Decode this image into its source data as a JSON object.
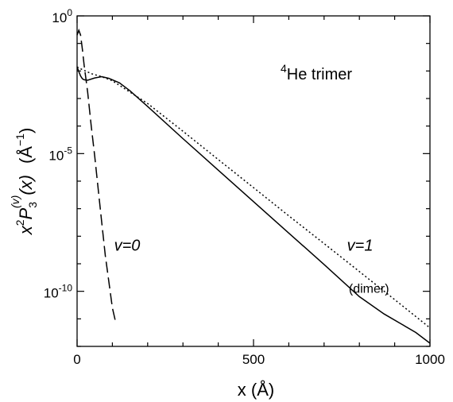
{
  "chart_data": {
    "type": "line",
    "title": "",
    "title_parts": {
      "sup": "4",
      "text": "He trimer"
    },
    "xlabel": "x (Å)",
    "ylabel_parts": {
      "x": "x",
      "sup2": "2",
      "P": "P",
      "sub3": "3",
      "supv": "(v)",
      "arg": "(x)",
      "unit": "(Å",
      "unitsup": "−1",
      "close": ")"
    },
    "xlim": [
      0,
      1000
    ],
    "ylim": [
      1e-12,
      1
    ],
    "yscale": "log",
    "grid": false,
    "x_ticks": [
      0,
      500,
      1000
    ],
    "x_tick_labels": [
      "0",
      "500",
      "1000"
    ],
    "y_ticks": [
      1,
      1e-05,
      1e-10
    ],
    "y_tick_labels": [
      {
        "base": "10",
        "exp": "0"
      },
      {
        "base": "10",
        "exp": "-5"
      },
      {
        "base": "10",
        "exp": "-10"
      }
    ],
    "series": [
      {
        "name": "v=1",
        "style": "solid",
        "x": [
          0,
          5,
          10,
          15,
          20,
          30,
          50,
          70,
          90,
          120,
          150,
          200,
          300,
          400,
          500,
          600,
          700,
          800,
          870,
          920,
          960,
          1000
        ],
        "y": [
          0.014,
          0.0095,
          0.0066,
          0.0052,
          0.0048,
          0.0046,
          0.0056,
          0.0062,
          0.0054,
          0.0037,
          0.0019,
          0.00051,
          3.5e-05,
          2.5e-06,
          1.8e-07,
          1.3e-08,
          9.4e-10,
          6.4e-11,
          1.5e-11,
          6.4e-12,
          3.2e-12,
          1.3e-12
        ]
      },
      {
        "name": "v=0",
        "style": "dashed",
        "x": [
          0,
          5,
          10,
          15,
          20,
          30,
          40,
          50,
          60,
          70,
          80,
          90,
          100,
          110
        ],
        "y": [
          0.2,
          0.3,
          0.2,
          0.06,
          0.016,
          0.0017,
          0.0001,
          8e-06,
          5e-07,
          3e-08,
          2e-09,
          2.2e-10,
          2.5e-11,
          7e-12
        ]
      },
      {
        "name": "(dimer)",
        "style": "dotted",
        "x": [
          0,
          10,
          20,
          40,
          70,
          100,
          150,
          200,
          300,
          400,
          500,
          600,
          700,
          800,
          900,
          1000
        ],
        "y": [
          0.014,
          0.012,
          0.0105,
          0.008,
          0.0062,
          0.0044,
          0.0017,
          0.00066,
          6.5e-05,
          6.1e-06,
          5.8e-07,
          5.5e-08,
          5.4e-09,
          5.2e-10,
          5e-11,
          4.7e-12
        ]
      }
    ],
    "annotations": [
      {
        "text": "v=1",
        "x": 765,
        "y": 3e-09
      },
      {
        "text": "v=0",
        "x": 105,
        "y": 3e-09
      },
      {
        "text": "(dimer)",
        "x": 770,
        "y": 9e-11
      }
    ]
  }
}
